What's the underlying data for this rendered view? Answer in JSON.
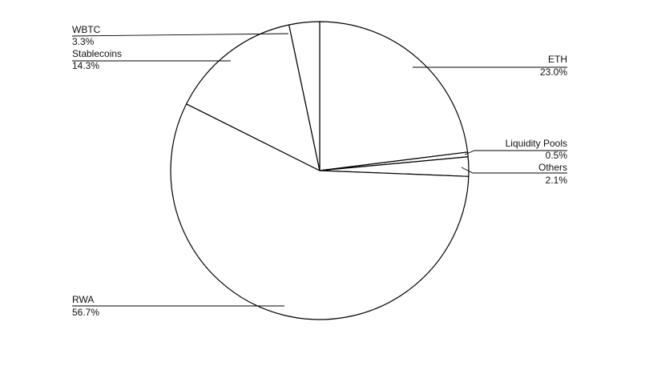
{
  "chart_data": {
    "type": "pie",
    "title": "",
    "categories": [
      "ETH",
      "Liquidity Pools",
      "Others",
      "RWA",
      "Stablecoins",
      "WBTC"
    ],
    "values": [
      23.0,
      0.5,
      2.1,
      56.7,
      14.3,
      3.3
    ],
    "labels": [
      "23.0%",
      "0.5%",
      "2.1%",
      "56.7%",
      "14.3%",
      "3.3%"
    ],
    "start_angle": "12 o'clock",
    "direction": "clockwise",
    "label_placement": "outside with leader lines",
    "colors": {
      "fill": "#ffffff",
      "stroke": "#000000"
    }
  }
}
